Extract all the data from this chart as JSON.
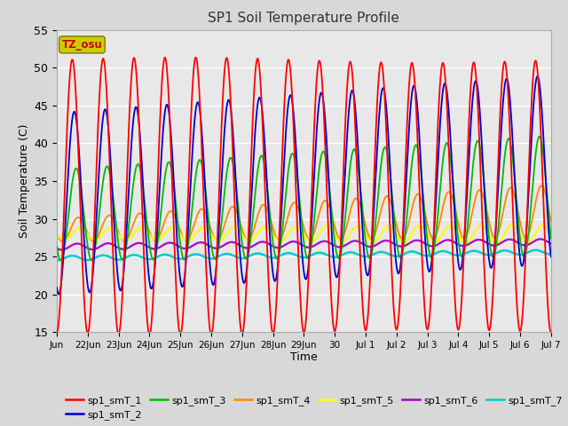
{
  "title": "SP1 Soil Temperature Profile",
  "xlabel": "Time",
  "ylabel": "Soil Temperature (C)",
  "ylim": [
    15,
    55
  ],
  "annotation_text": "TZ_osu",
  "annotation_color": "#cc0000",
  "annotation_bg": "#cccc00",
  "annotation_border": "#888800",
  "series_colors": {
    "sp1_smT_1": "#ff0000",
    "sp1_smT_2": "#0000cc",
    "sp1_smT_3": "#00bb00",
    "sp1_smT_4": "#ff8800",
    "sp1_smT_5": "#ffff00",
    "sp1_smT_6": "#aa00cc",
    "sp1_smT_7": "#00cccc"
  },
  "background_color": "#e8e8e8",
  "fig_background": "#d8d8d8",
  "grid_color": "#ffffff",
  "x_tick_labels": [
    "Jun",
    "22Jun",
    "23Jun",
    "24Jun",
    "25Jun",
    "26Jun",
    "27Jun",
    "28Jun",
    "29Jun",
    "30",
    "Jul 1",
    "Jul 2",
    "Jul 3",
    "Jul 4",
    "Jul 5",
    "Jul 6",
    "Jul 7"
  ],
  "x_tick_positions": [
    0,
    1,
    2,
    3,
    4,
    5,
    6,
    7,
    8,
    9,
    10,
    11,
    12,
    13,
    14,
    15,
    16
  ]
}
